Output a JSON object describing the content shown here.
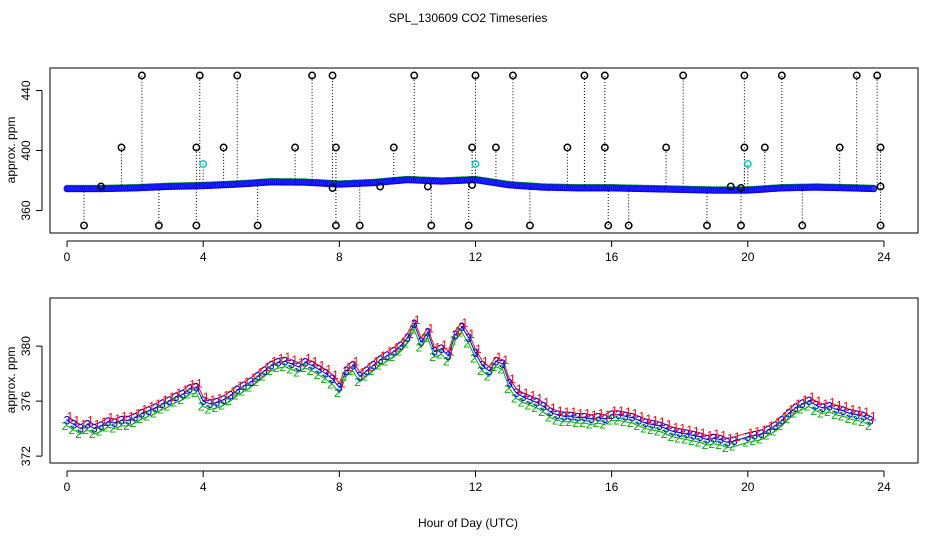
{
  "figure": {
    "title": "SPL_130609  CO2 Timeseries",
    "xlabel": "Hour of Day (UTC)"
  },
  "colors": {
    "series1": "#ff0000",
    "series2": "#00b000",
    "series3": "#0000ff",
    "outlier": "#000000",
    "alt_outlier": "#00cccc",
    "filled": "#3333ff"
  },
  "chart_data": [
    {
      "type": "scatter",
      "name": "top-panel",
      "title": "SPL_130609  CO2 Timeseries",
      "xlabel": "",
      "ylabel": "approx. ppm",
      "xlim": [
        -0.5,
        25
      ],
      "ylim": [
        345,
        455
      ],
      "xticks": [
        0,
        4,
        8,
        12,
        16,
        20,
        24
      ],
      "yticks": [
        360,
        400,
        440
      ],
      "baseline_series": [
        {
          "x": 0.0,
          "y": 374.5
        },
        {
          "x": 1.0,
          "y": 374.5
        },
        {
          "x": 2.0,
          "y": 375.0
        },
        {
          "x": 3.0,
          "y": 376.0
        },
        {
          "x": 4.0,
          "y": 376.5
        },
        {
          "x": 5.0,
          "y": 377.5
        },
        {
          "x": 6.0,
          "y": 379.0
        },
        {
          "x": 7.0,
          "y": 378.8
        },
        {
          "x": 8.0,
          "y": 377.5
        },
        {
          "x": 9.0,
          "y": 378.5
        },
        {
          "x": 10.0,
          "y": 380.5
        },
        {
          "x": 11.0,
          "y": 379.5
        },
        {
          "x": 12.0,
          "y": 380.5
        },
        {
          "x": 13.0,
          "y": 377.0
        },
        {
          "x": 14.0,
          "y": 375.5
        },
        {
          "x": 15.0,
          "y": 375.0
        },
        {
          "x": 16.0,
          "y": 375.0
        },
        {
          "x": 17.0,
          "y": 374.5
        },
        {
          "x": 18.0,
          "y": 374.0
        },
        {
          "x": 19.0,
          "y": 373.5
        },
        {
          "x": 20.0,
          "y": 373.5
        },
        {
          "x": 21.0,
          "y": 375.0
        },
        {
          "x": 22.0,
          "y": 375.5
        },
        {
          "x": 23.0,
          "y": 375.0
        },
        {
          "x": 23.7,
          "y": 374.5
        }
      ],
      "outliers_high": [
        2.2,
        3.9,
        5.0,
        7.2,
        7.8,
        10.2,
        12.0,
        13.1,
        15.2,
        15.8,
        18.1,
        19.9,
        21.0,
        23.2,
        23.8
      ],
      "outliers_high_value": 450,
      "outliers_400": [
        1.6,
        3.8,
        4.6,
        6.7,
        7.9,
        9.6,
        11.9,
        12.6,
        14.7,
        15.8,
        17.6,
        19.9,
        20.5,
        22.7,
        23.9
      ],
      "outliers_400_value": 402,
      "outliers_cyan": [
        {
          "x": 4.0,
          "y": 391
        },
        {
          "x": 12.0,
          "y": 391
        },
        {
          "x": 20.0,
          "y": 391
        }
      ],
      "outliers_low": [
        0.5,
        2.7,
        3.8,
        5.6,
        7.9,
        8.6,
        10.7,
        11.8,
        13.6,
        15.9,
        16.5,
        18.8,
        19.8,
        21.6,
        23.9
      ],
      "outliers_low_value": 350,
      "outliers_mid": [
        {
          "x": 1.0,
          "y": 376
        },
        {
          "x": 7.8,
          "y": 375
        },
        {
          "x": 9.2,
          "y": 376
        },
        {
          "x": 10.6,
          "y": 376
        },
        {
          "x": 11.9,
          "y": 377
        },
        {
          "x": 19.5,
          "y": 376
        },
        {
          "x": 19.8,
          "y": 375
        },
        {
          "x": 23.9,
          "y": 376
        }
      ]
    },
    {
      "type": "scatter",
      "name": "bottom-panel",
      "xlabel": "Hour of Day (UTC)",
      "ylabel": "approx. ppm",
      "xlim": [
        -0.5,
        25
      ],
      "ylim": [
        371.5,
        383.5
      ],
      "xticks": [
        0,
        4,
        8,
        12,
        16,
        20,
        24
      ],
      "yticks": [
        372,
        376,
        380
      ],
      "series_labels": [
        "1",
        "2",
        "3"
      ],
      "series": [
        {
          "name": "1",
          "offset": 0.3
        },
        {
          "name": "2",
          "offset": -0.4
        },
        {
          "name": "3",
          "offset": 0.0
        }
      ],
      "points": [
        {
          "x": 0.0,
          "y": 374.6
        },
        {
          "x": 0.2,
          "y": 374.3
        },
        {
          "x": 0.4,
          "y": 374.0
        },
        {
          "x": 0.6,
          "y": 374.3
        },
        {
          "x": 0.8,
          "y": 374.0
        },
        {
          "x": 1.0,
          "y": 374.2
        },
        {
          "x": 1.2,
          "y": 374.5
        },
        {
          "x": 1.4,
          "y": 374.4
        },
        {
          "x": 1.6,
          "y": 374.6
        },
        {
          "x": 1.8,
          "y": 374.6
        },
        {
          "x": 2.0,
          "y": 374.8
        },
        {
          "x": 2.2,
          "y": 375.1
        },
        {
          "x": 2.4,
          "y": 375.3
        },
        {
          "x": 2.6,
          "y": 375.5
        },
        {
          "x": 2.8,
          "y": 375.8
        },
        {
          "x": 3.0,
          "y": 376.0
        },
        {
          "x": 3.2,
          "y": 376.3
        },
        {
          "x": 3.4,
          "y": 376.5
        },
        {
          "x": 3.6,
          "y": 376.9
        },
        {
          "x": 3.8,
          "y": 377.0
        },
        {
          "x": 4.0,
          "y": 376.0
        },
        {
          "x": 4.2,
          "y": 375.8
        },
        {
          "x": 4.4,
          "y": 375.9
        },
        {
          "x": 4.6,
          "y": 376.1
        },
        {
          "x": 4.8,
          "y": 376.4
        },
        {
          "x": 5.0,
          "y": 376.8
        },
        {
          "x": 5.2,
          "y": 377.1
        },
        {
          "x": 5.4,
          "y": 377.4
        },
        {
          "x": 5.6,
          "y": 377.8
        },
        {
          "x": 5.8,
          "y": 378.2
        },
        {
          "x": 6.0,
          "y": 378.6
        },
        {
          "x": 6.2,
          "y": 378.8
        },
        {
          "x": 6.4,
          "y": 378.9
        },
        {
          "x": 6.6,
          "y": 378.7
        },
        {
          "x": 6.8,
          "y": 378.5
        },
        {
          "x": 7.0,
          "y": 378.8
        },
        {
          "x": 7.2,
          "y": 378.6
        },
        {
          "x": 7.4,
          "y": 378.3
        },
        {
          "x": 7.6,
          "y": 378.0
        },
        {
          "x": 7.8,
          "y": 377.6
        },
        {
          "x": 8.0,
          "y": 377.0
        },
        {
          "x": 8.2,
          "y": 378.2
        },
        {
          "x": 8.4,
          "y": 378.6
        },
        {
          "x": 8.6,
          "y": 377.8
        },
        {
          "x": 8.8,
          "y": 378.2
        },
        {
          "x": 9.0,
          "y": 378.6
        },
        {
          "x": 9.2,
          "y": 379.0
        },
        {
          "x": 9.4,
          "y": 379.3
        },
        {
          "x": 9.6,
          "y": 379.6
        },
        {
          "x": 9.8,
          "y": 380.0
        },
        {
          "x": 10.0,
          "y": 380.6
        },
        {
          "x": 10.2,
          "y": 381.6
        },
        {
          "x": 10.4,
          "y": 380.3
        },
        {
          "x": 10.6,
          "y": 381.0
        },
        {
          "x": 10.8,
          "y": 379.6
        },
        {
          "x": 11.0,
          "y": 379.8
        },
        {
          "x": 11.2,
          "y": 379.3
        },
        {
          "x": 11.4,
          "y": 380.8
        },
        {
          "x": 11.6,
          "y": 381.4
        },
        {
          "x": 11.8,
          "y": 380.6
        },
        {
          "x": 12.0,
          "y": 379.5
        },
        {
          "x": 12.2,
          "y": 378.6
        },
        {
          "x": 12.4,
          "y": 378.2
        },
        {
          "x": 12.6,
          "y": 378.9
        },
        {
          "x": 12.8,
          "y": 378.7
        },
        {
          "x": 13.0,
          "y": 377.3
        },
        {
          "x": 13.2,
          "y": 376.6
        },
        {
          "x": 13.4,
          "y": 376.3
        },
        {
          "x": 13.6,
          "y": 376.1
        },
        {
          "x": 13.8,
          "y": 375.9
        },
        {
          "x": 14.0,
          "y": 375.6
        },
        {
          "x": 14.2,
          "y": 375.2
        },
        {
          "x": 14.4,
          "y": 375.0
        },
        {
          "x": 14.6,
          "y": 374.9
        },
        {
          "x": 14.8,
          "y": 374.9
        },
        {
          "x": 15.0,
          "y": 374.8
        },
        {
          "x": 15.2,
          "y": 374.8
        },
        {
          "x": 15.4,
          "y": 374.7
        },
        {
          "x": 15.6,
          "y": 374.8
        },
        {
          "x": 15.8,
          "y": 374.7
        },
        {
          "x": 16.0,
          "y": 375.0
        },
        {
          "x": 16.2,
          "y": 375.0
        },
        {
          "x": 16.4,
          "y": 374.9
        },
        {
          "x": 16.6,
          "y": 374.8
        },
        {
          "x": 16.8,
          "y": 374.6
        },
        {
          "x": 17.0,
          "y": 374.4
        },
        {
          "x": 17.2,
          "y": 374.3
        },
        {
          "x": 17.4,
          "y": 374.2
        },
        {
          "x": 17.6,
          "y": 374.0
        },
        {
          "x": 17.8,
          "y": 373.8
        },
        {
          "x": 18.0,
          "y": 373.7
        },
        {
          "x": 18.2,
          "y": 373.6
        },
        {
          "x": 18.4,
          "y": 373.5
        },
        {
          "x": 18.6,
          "y": 373.4
        },
        {
          "x": 18.8,
          "y": 373.2
        },
        {
          "x": 19.0,
          "y": 373.3
        },
        {
          "x": 19.2,
          "y": 373.2
        },
        {
          "x": 19.4,
          "y": 373.0
        },
        {
          "x": 19.6,
          "y": 373.1
        },
        {
          "x": 20.0,
          "y": 373.4
        },
        {
          "x": 20.2,
          "y": 373.5
        },
        {
          "x": 20.4,
          "y": 373.6
        },
        {
          "x": 20.6,
          "y": 373.9
        },
        {
          "x": 20.8,
          "y": 374.2
        },
        {
          "x": 21.0,
          "y": 374.6
        },
        {
          "x": 21.2,
          "y": 375.1
        },
        {
          "x": 21.4,
          "y": 375.5
        },
        {
          "x": 21.6,
          "y": 375.8
        },
        {
          "x": 21.8,
          "y": 376.0
        },
        {
          "x": 22.0,
          "y": 375.7
        },
        {
          "x": 22.2,
          "y": 375.5
        },
        {
          "x": 22.4,
          "y": 375.6
        },
        {
          "x": 22.6,
          "y": 375.4
        },
        {
          "x": 22.8,
          "y": 375.3
        },
        {
          "x": 23.0,
          "y": 375.1
        },
        {
          "x": 23.2,
          "y": 375.0
        },
        {
          "x": 23.4,
          "y": 374.9
        },
        {
          "x": 23.6,
          "y": 374.6
        }
      ]
    }
  ]
}
